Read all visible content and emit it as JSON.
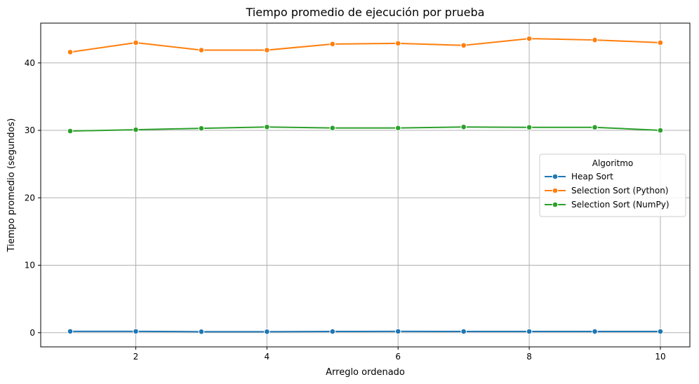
{
  "chart_data": {
    "type": "line",
    "title": "Tiempo promedio de ejecución por prueba",
    "xlabel": "Arreglo ordenado",
    "ylabel": "Tiempo promedio (segundos)",
    "xlim": [
      0.55,
      10.45
    ],
    "ylim": [
      -2.1,
      45.9
    ],
    "x": [
      1,
      2,
      3,
      4,
      5,
      6,
      7,
      8,
      9,
      10
    ],
    "xticks": [
      2,
      4,
      6,
      8,
      10
    ],
    "yticks": [
      0,
      10,
      20,
      30,
      40
    ],
    "grid": true,
    "legend": {
      "title": "Algoritmo",
      "placement": "center-right"
    },
    "series": [
      {
        "name": "Heap Sort",
        "color": "#1f77b4",
        "values": [
          0.2,
          0.2,
          0.15,
          0.15,
          0.18,
          0.2,
          0.18,
          0.18,
          0.18,
          0.18
        ]
      },
      {
        "name": "Selection Sort (Python)",
        "color": "#ff7f0e",
        "values": [
          41.6,
          43.0,
          41.9,
          41.9,
          42.8,
          42.9,
          42.6,
          43.6,
          43.4,
          43.0
        ]
      },
      {
        "name": "Selection Sort (NumPy)",
        "color": "#2ca02c",
        "values": [
          29.9,
          30.1,
          30.3,
          30.5,
          30.35,
          30.35,
          30.5,
          30.45,
          30.45,
          30.0
        ]
      }
    ]
  }
}
